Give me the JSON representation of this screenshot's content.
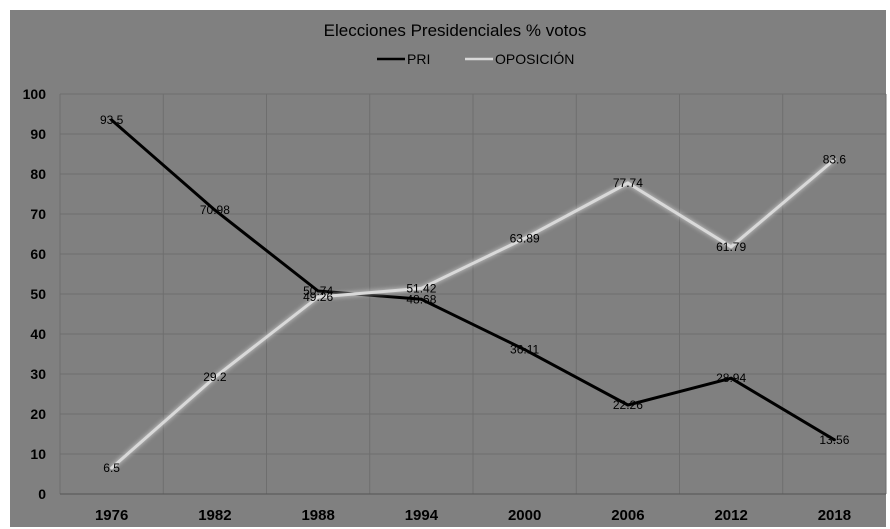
{
  "chart_data": {
    "type": "line",
    "title": "Elecciones Presidenciales % votos",
    "categories": [
      "1976",
      "1982",
      "1988",
      "1994",
      "2000",
      "2006",
      "2012",
      "2018"
    ],
    "series": [
      {
        "name": "PRI",
        "color": "#000000",
        "values": [
          93.5,
          70.98,
          50.74,
          48.68,
          36.11,
          22.26,
          28.94,
          13.56
        ],
        "labels": [
          "93.5",
          "70.98",
          "50.74",
          "48.68",
          "36.11",
          "22.26",
          "28.94",
          "13.56"
        ]
      },
      {
        "name": "OPOSICIÓN",
        "color": "#d9d9d9",
        "values": [
          6.5,
          29.2,
          49.26,
          51.42,
          63.89,
          77.74,
          61.79,
          83.6
        ],
        "labels": [
          "6.5",
          "29.2",
          "49.26",
          "51.42",
          "63.89",
          "77.74",
          "61.79",
          "83.6"
        ]
      }
    ],
    "yticks": [
      "0",
      "10",
      "20",
      "30",
      "40",
      "50",
      "60",
      "70",
      "80",
      "90",
      "100"
    ],
    "ylim": [
      0,
      100
    ],
    "grid": true,
    "legend_position": "top",
    "background_color": "#808080",
    "gridline_color": "#6e6e6e"
  }
}
